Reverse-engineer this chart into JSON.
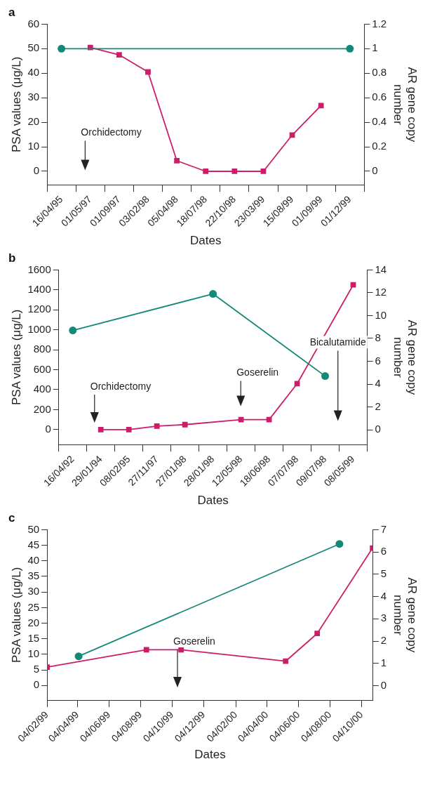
{
  "chart_data": [
    {
      "type": "line",
      "title": "a",
      "xlabel": "Dates",
      "ylabel": "PSA values (μg/L)",
      "y2label": "AR gene copy number",
      "categories": [
        "16/04/95",
        "01/05/97",
        "01/09/97",
        "03/02/98",
        "05/04/98",
        "18/07/98",
        "22/10/98",
        "23/03/99",
        "15/08/99",
        "01/09/99",
        "01/12/99"
      ],
      "series": [
        {
          "color": "#13897a",
          "marker": "circle",
          "axis": "y2",
          "values": [
            1,
            null,
            null,
            null,
            null,
            null,
            null,
            null,
            null,
            null,
            1
          ]
        },
        {
          "color": "#cc1d6a",
          "marker": "square",
          "values": [
            null,
            50.5,
            47.5,
            40.5,
            4.3,
            0,
            0,
            0,
            14.8,
            26.8,
            null
          ]
        }
      ],
      "ylim": [
        -5.5,
        60
      ],
      "yticks": [
        0,
        10,
        20,
        30,
        40,
        50,
        60
      ],
      "y2lim": [
        -0.11,
        1.2
      ],
      "y2ticks": [
        0,
        0.2,
        0.4,
        0.6,
        0.8,
        1,
        1.2
      ],
      "annotations": [
        "Orchidectomy"
      ],
      "legend": false
    },
    {
      "type": "line",
      "title": "b",
      "xlabel": "Dates",
      "ylabel": "PSA values (μg/L)",
      "y2label": "AR gene copy number",
      "categories": [
        "16/04/92",
        "29/01/94",
        "08/02/95",
        "27/11/97",
        "27/01/98",
        "28/01/98",
        "12/05/98",
        "18/06/98",
        "07/07/98",
        "09/07/98",
        "08/05/99"
      ],
      "series": [
        {
          "color": "#13897a",
          "marker": "circle",
          "axis": "y2",
          "values": [
            8.7,
            null,
            null,
            null,
            null,
            11.9,
            null,
            null,
            null,
            4.7,
            null
          ]
        },
        {
          "color": "#cc1d6a",
          "marker": "square",
          "values": [
            null,
            0,
            0,
            35,
            50,
            null,
            100,
            100,
            460,
            null,
            1450
          ]
        }
      ],
      "ylim": [
        -150,
        1600
      ],
      "yticks": [
        0,
        200,
        400,
        600,
        800,
        1000,
        1200,
        1400,
        1600
      ],
      "y2lim": [
        -1.3,
        14
      ],
      "y2ticks": [
        0,
        2,
        4,
        6,
        8,
        10,
        12,
        14
      ],
      "annotations": [
        "Orchidectomy",
        "Goserelin",
        "Bicalutamide"
      ],
      "legend": false
    },
    {
      "type": "line",
      "title": "c",
      "xlabel": "Dates",
      "ylabel": "PSA values (μg/L)",
      "y2label": "AR gene copy number",
      "series": [
        {
          "color": "#13897a",
          "marker": "circle",
          "axis": "y2",
          "x": [
            "1999-04-06",
            "2000-08-22"
          ],
          "values": [
            1.32,
            6.36
          ]
        },
        {
          "color": "#cc1d6a",
          "marker": "square",
          "x": [
            "1999-02-04",
            "1999-08-15",
            "1999-10-21",
            "2000-05-10",
            "2000-07-10",
            "2000-10-25"
          ],
          "values": [
            5.9,
            11.5,
            11.5,
            7.8,
            16.7,
            44.1
          ]
        }
      ],
      "xlim": [
        "1999-02-04",
        "2000-10-26"
      ],
      "xticks": [
        {
          "value": "1999-02-04",
          "label": "04/02/99"
        },
        {
          "value": "1999-04-04",
          "label": "04/04/99"
        },
        {
          "value": "1999-06-04",
          "label": "04/06/99"
        },
        {
          "value": "1999-08-04",
          "label": "04/08/99"
        },
        {
          "value": "1999-10-04",
          "label": "04/10/99"
        },
        {
          "value": "1999-12-04",
          "label": "04/12/99"
        },
        {
          "value": "2000-02-04",
          "label": "04/02/00"
        },
        {
          "value": "2000-04-04",
          "label": "04/04/00"
        },
        {
          "value": "2000-06-04",
          "label": "04/06/00"
        },
        {
          "value": "2000-08-04",
          "label": "04/08/00"
        },
        {
          "value": "2000-10-04",
          "label": "04/10/00"
        }
      ],
      "ylim": [
        -4.7,
        50
      ],
      "yticks": [
        0,
        5,
        10,
        15,
        20,
        25,
        30,
        35,
        40,
        45,
        50
      ],
      "y2lim": [
        -0.65,
        7
      ],
      "y2ticks": [
        0,
        1,
        2,
        3,
        4,
        5,
        6,
        7
      ],
      "annotations": [
        "Goserelin"
      ],
      "legend": false
    }
  ]
}
